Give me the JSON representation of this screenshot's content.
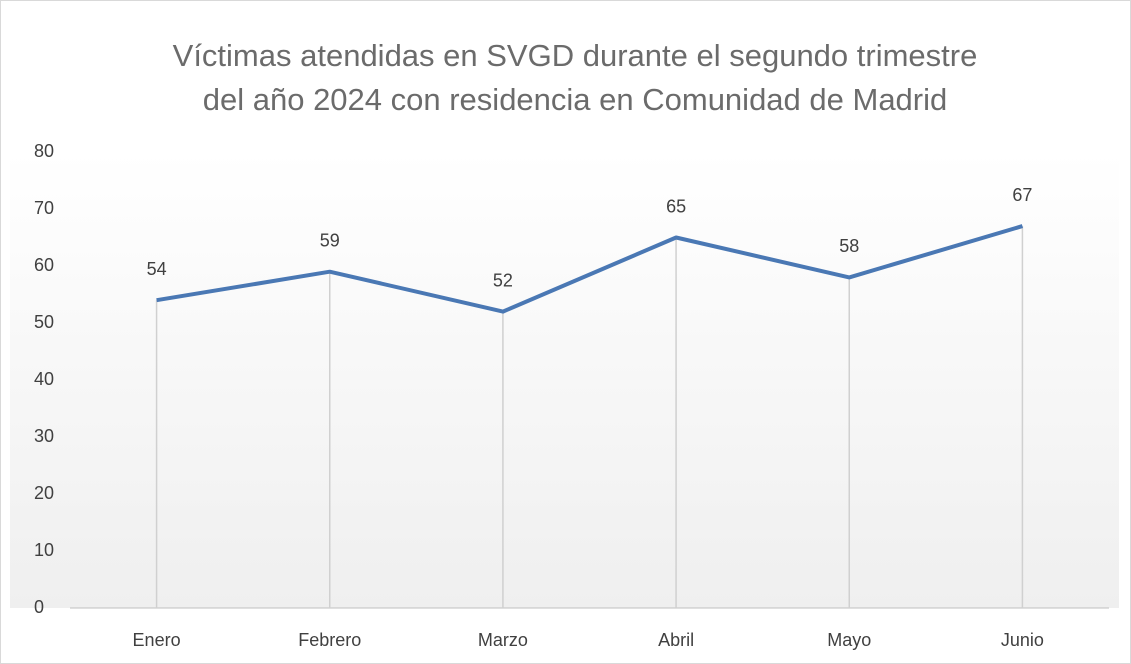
{
  "chart_data": {
    "type": "line",
    "title": [
      "Víctimas atendidas en SVGD durante el segundo trimestre",
      "del año 2024 con residencia en Comunidad de Madrid"
    ],
    "categories": [
      "Enero",
      "Febrero",
      "Marzo",
      "Abril",
      "Mayo",
      "Junio"
    ],
    "values": [
      54,
      59,
      52,
      65,
      58,
      67
    ],
    "color": "#4a78b4",
    "ylim": [
      0,
      80
    ],
    "yticks": [
      0,
      10,
      20,
      30,
      40,
      50,
      60,
      70,
      80
    ],
    "grid": false,
    "drop_lines": true
  }
}
